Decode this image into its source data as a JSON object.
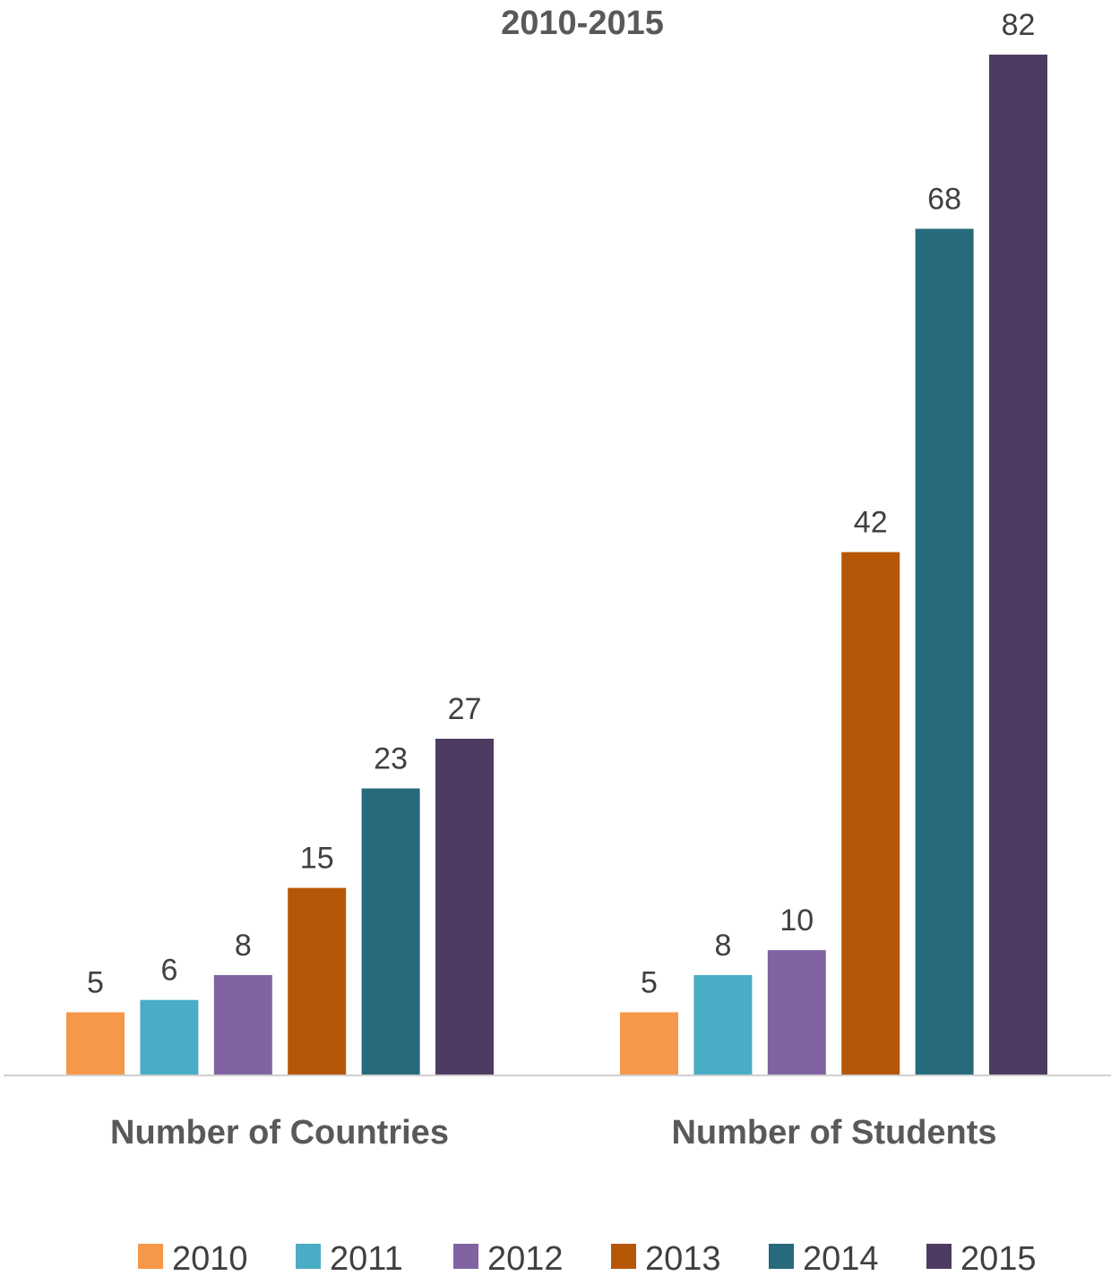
{
  "chart_data": {
    "type": "bar",
    "title": "2010-2015",
    "categories": [
      "Number of Countries",
      "Number of Students"
    ],
    "series": [
      {
        "name": "2010",
        "color": "#F59849",
        "values": [
          5,
          5
        ]
      },
      {
        "name": "2011",
        "color": "#4BACC6",
        "values": [
          6,
          8
        ]
      },
      {
        "name": "2012",
        "color": "#8064A2",
        "values": [
          8,
          10
        ]
      },
      {
        "name": "2013",
        "color": "#B65708",
        "values": [
          15,
          42
        ]
      },
      {
        "name": "2014",
        "color": "#276A7C",
        "values": [
          23,
          68
        ]
      },
      {
        "name": "2015",
        "color": "#4E3B62",
        "values": [
          27,
          82
        ]
      }
    ],
    "xlabel": "",
    "ylabel": "",
    "ylim": [
      0,
      82
    ],
    "grid": false,
    "legend": "bottom"
  }
}
